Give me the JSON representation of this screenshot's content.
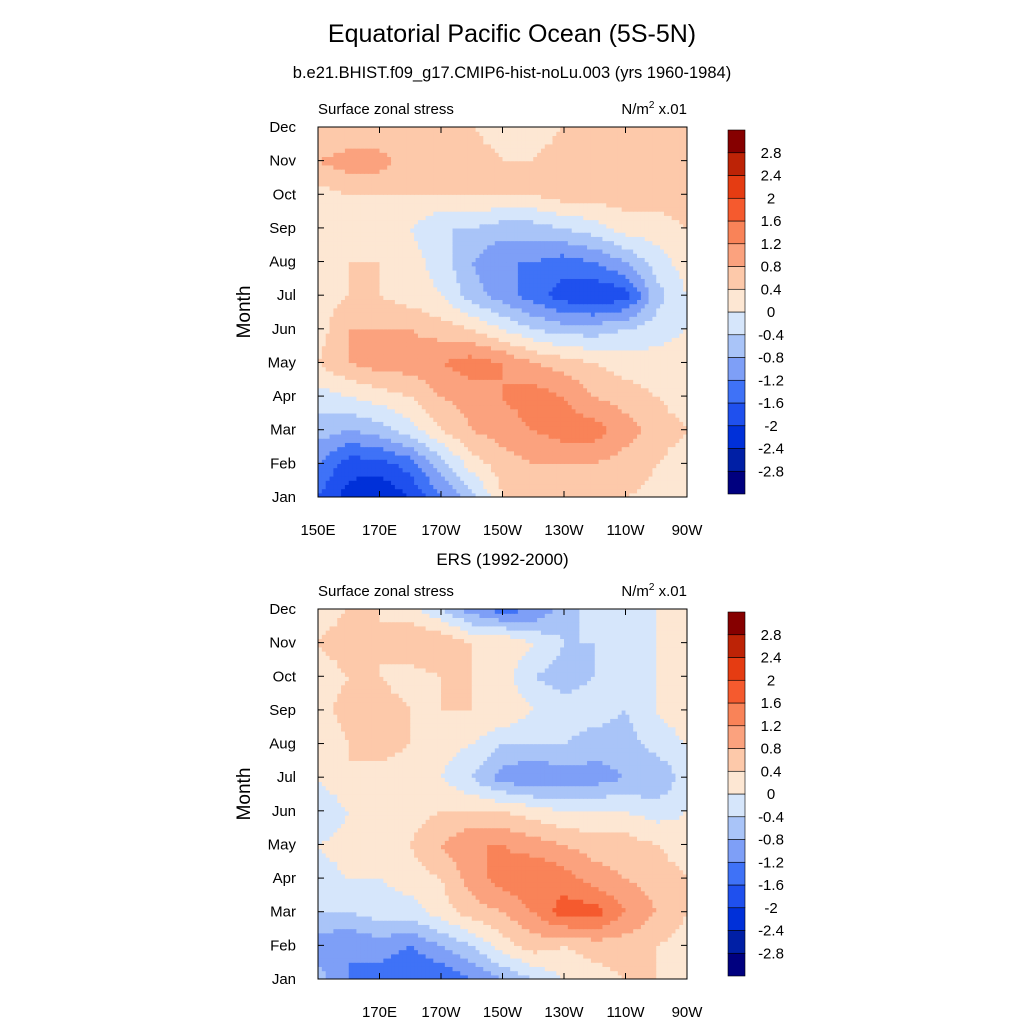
{
  "title": "Equatorial Pacific Ocean (5S-5N)",
  "subtitle": "b.e21.BHIST.f09_g17.CMIP6-hist-noLu.003 (yrs 1960-1984)",
  "colorbar": {
    "levels": [
      -2.8,
      -2.4,
      -2,
      -1.6,
      -1.2,
      -0.8,
      -0.4,
      0,
      0.4,
      0.8,
      1.2,
      1.6,
      2,
      2.4,
      2.8
    ],
    "labels": [
      "-2.8",
      "-2.4",
      "-2",
      "-1.6",
      "-1.2",
      "-0.8",
      "-0.4",
      "0",
      "0.4",
      "0.8",
      "1.2",
      "1.6",
      "2",
      "2.4",
      "2.8"
    ],
    "colors": [
      "#00007f",
      "#001fa5",
      "#0030d9",
      "#1f50ee",
      "#3f72f7",
      "#7e9ff7",
      "#a9c4f8",
      "#d6e6fb",
      "#fde7d3",
      "#fdc9aa",
      "#fba27e",
      "#f98358",
      "#f55a2e",
      "#e53c12",
      "#bd2306",
      "#860000"
    ]
  },
  "chart_data": [
    {
      "type": "heatmap",
      "panel_title": "",
      "left_label": "Surface zonal stress",
      "right_label_base": "N/m",
      "right_label_sup": "2",
      "right_label_tail": " x.01",
      "ylabel": "Month",
      "y_ticklabels": [
        "Jan",
        "Feb",
        "Mar",
        "Apr",
        "May",
        "Jun",
        "Jul",
        "Aug",
        "Sep",
        "Oct",
        "Nov",
        "Dec"
      ],
      "x_ticklabels": [
        "150E",
        "170E",
        "170W",
        "150W",
        "130W",
        "110W",
        "90W"
      ],
      "x_ticks_lon": [
        150,
        170,
        190,
        210,
        230,
        250,
        270
      ],
      "xlim_lon": [
        150,
        270
      ],
      "x_grid_lon": [
        150,
        160,
        170,
        180,
        190,
        200,
        210,
        220,
        230,
        240,
        250,
        260,
        270
      ],
      "values": [
        [
          -1.6,
          -2.2,
          -2.4,
          -2.0,
          -1.2,
          -0.6,
          0.4,
          0.6,
          0.8,
          0.6,
          0.4,
          0.3,
          0.2
        ],
        [
          -1.2,
          -1.8,
          -1.8,
          -1.4,
          -0.6,
          0.2,
          0.6,
          0.8,
          0.8,
          0.8,
          0.6,
          0.4,
          0.2
        ],
        [
          -0.6,
          -0.8,
          -0.6,
          -0.2,
          0.4,
          0.8,
          1.0,
          1.2,
          1.4,
          1.4,
          1.0,
          0.6,
          0.4
        ],
        [
          -0.2,
          0.0,
          0.2,
          0.4,
          0.8,
          1.0,
          1.2,
          1.4,
          1.2,
          0.8,
          0.6,
          0.4,
          0.2
        ],
        [
          0.4,
          0.8,
          1.0,
          1.0,
          1.2,
          1.4,
          1.2,
          0.8,
          0.6,
          0.4,
          0.2,
          0.2,
          0.2
        ],
        [
          0.2,
          0.8,
          0.8,
          0.8,
          0.6,
          0.4,
          0.0,
          -0.4,
          -0.6,
          -0.6,
          -0.4,
          -0.2,
          0.0
        ],
        [
          0.2,
          0.4,
          0.4,
          0.2,
          0.0,
          -0.6,
          -1.0,
          -1.4,
          -1.8,
          -2.0,
          -1.8,
          -0.6,
          0.0
        ],
        [
          0.2,
          0.4,
          0.4,
          0.2,
          -0.2,
          -0.8,
          -1.2,
          -1.2,
          -1.4,
          -1.2,
          -0.8,
          -0.2,
          0.2
        ],
        [
          0.2,
          0.2,
          0.2,
          0.0,
          -0.4,
          -0.4,
          -0.6,
          -0.6,
          -0.4,
          -0.2,
          0.2,
          0.2,
          0.4
        ],
        [
          0.2,
          0.4,
          0.4,
          0.4,
          0.4,
          0.4,
          0.4,
          0.4,
          0.6,
          0.6,
          0.6,
          0.6,
          0.6
        ],
        [
          0.8,
          1.0,
          1.0,
          0.6,
          0.6,
          0.6,
          0.4,
          0.4,
          0.6,
          0.6,
          0.6,
          0.6,
          0.6
        ],
        [
          0.4,
          0.4,
          0.4,
          0.4,
          0.4,
          0.4,
          0.2,
          0.2,
          0.4,
          0.6,
          0.6,
          0.6,
          0.6
        ]
      ]
    },
    {
      "type": "heatmap",
      "panel_title": "ERS (1992-2000)",
      "left_label": "Surface zonal stress",
      "right_label_base": "N/m",
      "right_label_sup": "2",
      "right_label_tail": " x.01",
      "ylabel": "Month",
      "y_ticklabels": [
        "Jan",
        "Feb",
        "Mar",
        "Apr",
        "May",
        "Jun",
        "Jul",
        "Aug",
        "Sep",
        "Oct",
        "Nov",
        "Dec"
      ],
      "x_ticklabels": [
        "170E",
        "170W",
        "150W",
        "130W",
        "110W",
        "90W"
      ],
      "x_ticks_lon": [
        170,
        190,
        210,
        230,
        250,
        270
      ],
      "xlim_lon": [
        150,
        270
      ],
      "x_grid_lon": [
        150,
        160,
        170,
        180,
        190,
        200,
        210,
        220,
        230,
        240,
        250,
        260,
        270
      ],
      "values": [
        [
          -0.6,
          -1.2,
          -1.4,
          -1.6,
          -1.6,
          -1.2,
          -0.8,
          -0.4,
          0.0,
          0.2,
          0.4,
          0.4,
          0.2
        ],
        [
          -1.0,
          -1.2,
          -1.0,
          -1.2,
          -0.8,
          -0.4,
          0.2,
          0.6,
          0.4,
          0.6,
          0.6,
          0.4,
          0.2
        ],
        [
          -0.4,
          -0.4,
          -0.2,
          -0.2,
          0.2,
          0.6,
          0.8,
          1.2,
          1.8,
          1.8,
          1.2,
          0.8,
          0.4
        ],
        [
          -0.2,
          0.0,
          0.0,
          0.2,
          0.4,
          1.0,
          1.4,
          1.6,
          1.4,
          1.0,
          0.8,
          0.6,
          0.4
        ],
        [
          0.0,
          0.2,
          0.2,
          0.4,
          0.8,
          1.2,
          1.2,
          1.0,
          0.8,
          0.6,
          0.6,
          0.4,
          0.2
        ],
        [
          -0.4,
          0.0,
          0.2,
          0.2,
          0.4,
          0.4,
          0.4,
          0.2,
          0.0,
          0.0,
          0.0,
          -0.2,
          0.0
        ],
        [
          0.0,
          0.4,
          0.2,
          0.2,
          0.0,
          -0.4,
          -1.0,
          -1.2,
          -1.0,
          -1.0,
          -0.8,
          -0.8,
          -0.2
        ],
        [
          0.0,
          0.4,
          0.6,
          0.4,
          0.2,
          0.0,
          -0.4,
          -0.4,
          -0.4,
          -0.6,
          -0.6,
          -0.2,
          0.0
        ],
        [
          0.2,
          0.6,
          0.6,
          0.4,
          0.4,
          0.4,
          0.4,
          0.0,
          -0.2,
          -0.2,
          -0.4,
          0.0,
          0.2
        ],
        [
          0.2,
          0.4,
          0.4,
          0.2,
          0.4,
          0.4,
          0.2,
          -0.4,
          -0.6,
          -0.4,
          -0.4,
          0.0,
          0.2
        ],
        [
          0.4,
          0.6,
          0.4,
          0.8,
          0.8,
          0.4,
          0.4,
          0.0,
          -0.4,
          -0.4,
          -0.4,
          0.0,
          0.2
        ],
        [
          0.2,
          0.4,
          0.4,
          0.2,
          -0.4,
          -1.0,
          -1.4,
          -1.2,
          -0.6,
          -0.2,
          0.0,
          0.0,
          0.2
        ]
      ]
    }
  ]
}
